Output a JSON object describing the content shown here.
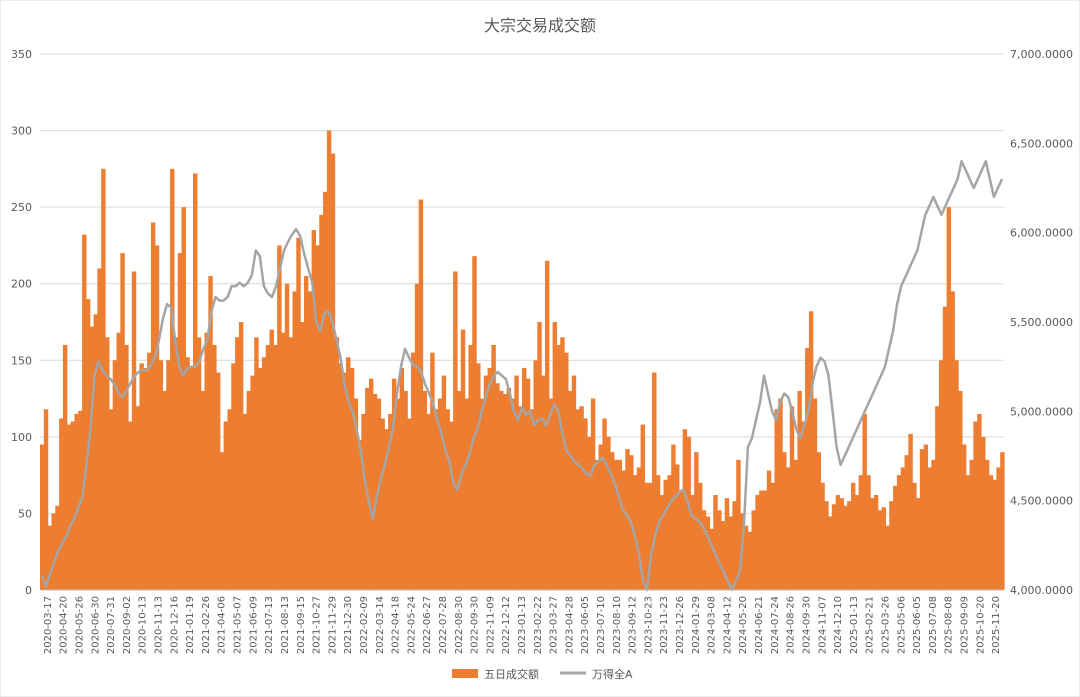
{
  "chart_data": {
    "type": "bar+line",
    "title": "大宗交易成交额",
    "grid": true,
    "legend_position": "bottom",
    "y_left": {
      "ylim": [
        0,
        350
      ],
      "ticks": [
        "0",
        "50",
        "100",
        "150",
        "200",
        "250",
        "300",
        "350"
      ]
    },
    "y_right": {
      "ylim": [
        4000,
        7000
      ],
      "ticks": [
        "4,000.0000",
        "4,500.0000",
        "5,000.0000",
        "5,500.0000",
        "6,000.0000",
        "6,500.0000",
        "7,000.0000"
      ]
    },
    "x_tick_labels": [
      "2020-03-17",
      "2020-04-20",
      "2020-05-26",
      "2020-06-30",
      "2020-07-31",
      "2020-09-02",
      "2020-10-13",
      "2020-11-13",
      "2020-12-16",
      "2021-01-19",
      "2021-02-26",
      "2021-04-06",
      "2021-05-07",
      "2021-06-09",
      "2021-07-13",
      "2021-08-13",
      "2021-09-15",
      "2021-10-27",
      "2021-11-29",
      "2021-12-30",
      "2022-02-09",
      "2022-03-14",
      "2022-04-18",
      "2022-05-24",
      "2022-06-27",
      "2022-07-28",
      "2022-08-30",
      "2022-09-30",
      "2022-11-09",
      "2022-12-12",
      "2023-01-13",
      "2023-02-22",
      "2023-03-27",
      "2023-04-28",
      "2023-06-05",
      "2023-07-10",
      "2023-08-10",
      "2023-09-12",
      "2023-10-23",
      "2023-11-23",
      "2023-12-26",
      "2024-01-29",
      "2024-03-08",
      "2024-04-12",
      "2024-05-20",
      "2024-06-21",
      "2024-07-24",
      "2024-08-26",
      "2024-09-30",
      "2024-11-07",
      "2024-12-10",
      "2025-01-13",
      "2025-02-21",
      "2025-03-26",
      "2025-05-06",
      "2025-06-05",
      "2025-07-08",
      "2025-08-08",
      "2025-09-09",
      "2025-10-20",
      "2025-11-20"
    ],
    "series": [
      {
        "name": "五日成交额",
        "axis": "left",
        "kind": "bar",
        "color": "#ED7D31",
        "values": [
          95,
          118,
          42,
          50,
          55,
          112,
          160,
          108,
          110,
          115,
          117,
          232,
          190,
          172,
          180,
          210,
          275,
          165,
          118,
          150,
          168,
          220,
          160,
          110,
          208,
          120,
          148,
          145,
          155,
          240,
          225,
          150,
          130,
          150,
          275,
          165,
          220,
          250,
          152,
          145,
          272,
          165,
          130,
          168,
          205,
          160,
          142,
          90,
          110,
          118,
          148,
          165,
          175,
          115,
          130,
          140,
          165,
          145,
          152,
          160,
          170,
          160,
          225,
          168,
          200,
          165,
          195,
          230,
          175,
          205,
          195,
          235,
          225,
          245,
          260,
          300,
          285,
          165,
          148,
          142,
          152,
          145,
          125,
          98,
          115,
          132,
          138,
          128,
          125,
          112,
          105,
          115,
          138,
          125,
          145,
          130,
          112,
          155,
          200,
          255,
          130,
          115,
          155,
          118,
          125,
          140,
          118,
          110,
          208,
          130,
          170,
          125,
          160,
          218,
          148,
          125,
          140,
          145,
          160,
          135,
          130,
          128,
          132,
          125,
          140,
          120,
          145,
          138,
          118,
          150,
          175,
          140,
          215,
          125,
          175,
          160,
          165,
          155,
          130,
          140,
          118,
          120,
          112,
          100,
          125,
          85,
          95,
          112,
          100,
          90,
          85,
          85,
          78,
          92,
          88,
          75,
          80,
          108,
          70,
          70,
          142,
          75,
          62,
          72,
          75,
          95,
          82,
          65,
          105,
          100,
          62,
          90,
          70,
          52,
          48,
          40,
          62,
          52,
          45,
          60,
          48,
          58,
          85,
          50,
          42,
          38,
          52,
          62,
          65,
          65,
          78,
          70,
          118,
          125,
          90,
          80,
          120,
          85,
          130,
          110,
          158,
          182,
          125,
          90,
          70,
          58,
          48,
          56,
          62,
          60,
          55,
          58,
          70,
          62,
          75,
          115,
          75,
          60,
          62,
          52,
          54,
          42,
          58,
          68,
          75,
          80,
          88,
          102,
          70,
          60,
          92,
          95,
          80,
          85,
          120,
          150,
          185,
          250,
          195,
          150,
          130,
          95,
          75,
          85,
          110,
          115,
          100,
          85,
          75,
          72,
          80,
          90
        ]
      },
      {
        "name": "万得全A",
        "axis": "right",
        "kind": "line",
        "color": "#A5A5A5",
        "values": [
          4080,
          4020,
          4090,
          4150,
          4220,
          4260,
          4300,
          4360,
          4400,
          4460,
          4520,
          4700,
          4900,
          5200,
          5280,
          5230,
          5200,
          5180,
          5150,
          5100,
          5080,
          5120,
          5160,
          5200,
          5220,
          5230,
          5230,
          5260,
          5300,
          5400,
          5520,
          5600,
          5580,
          5400,
          5250,
          5200,
          5240,
          5250,
          5250,
          5280,
          5350,
          5400,
          5560,
          5640,
          5620,
          5620,
          5640,
          5700,
          5700,
          5720,
          5700,
          5720,
          5760,
          5900,
          5870,
          5700,
          5660,
          5640,
          5700,
          5800,
          5900,
          5950,
          5990,
          6020,
          5980,
          5880,
          5800,
          5720,
          5500,
          5450,
          5550,
          5560,
          5500,
          5400,
          5300,
          5150,
          5050,
          5000,
          4900,
          4780,
          4620,
          4500,
          4400,
          4520,
          4620,
          4700,
          4800,
          4900,
          5100,
          5250,
          5350,
          5300,
          5260,
          5250,
          5220,
          5150,
          5100,
          5040,
          4950,
          4880,
          4780,
          4720,
          4600,
          4560,
          4650,
          4700,
          4760,
          4850,
          4900,
          5000,
          5080,
          5150,
          5200,
          5220,
          5200,
          5180,
          5100,
          5000,
          4950,
          5020,
          4980,
          5000,
          4920,
          4950,
          4960,
          4920,
          4980,
          5040,
          5000,
          4880,
          4780,
          4750,
          4720,
          4700,
          4680,
          4650,
          4640,
          4700,
          4720,
          4740,
          4700,
          4650,
          4600,
          4520,
          4450,
          4420,
          4380,
          4300,
          4200,
          4050,
          4000,
          4200,
          4300,
          4380,
          4420,
          4460,
          4500,
          4520,
          4550,
          4560,
          4500,
          4420,
          4400,
          4380,
          4350,
          4300,
          4250,
          4200,
          4150,
          4100,
          4050,
          4000,
          4050,
          4100,
          4350,
          4800,
          4850,
          4950,
          5050,
          5200,
          5100,
          5000,
          4950,
          5050,
          5100,
          5080,
          5000,
          4900,
          4850,
          4920,
          5000,
          5150,
          5250,
          5300,
          5280,
          5200,
          5000,
          4800,
          4700,
          4750,
          4800,
          4850,
          4900,
          4950,
          5000,
          5050,
          5100,
          5150,
          5200,
          5250,
          5350,
          5450,
          5600,
          5700,
          5750,
          5800,
          5850,
          5900,
          6000,
          6100,
          6150,
          6200,
          6150,
          6100,
          6150,
          6200,
          6250,
          6300,
          6400,
          6350,
          6300,
          6250,
          6300,
          6350,
          6400,
          6300,
          6200,
          6250,
          6300
        ]
      }
    ]
  }
}
